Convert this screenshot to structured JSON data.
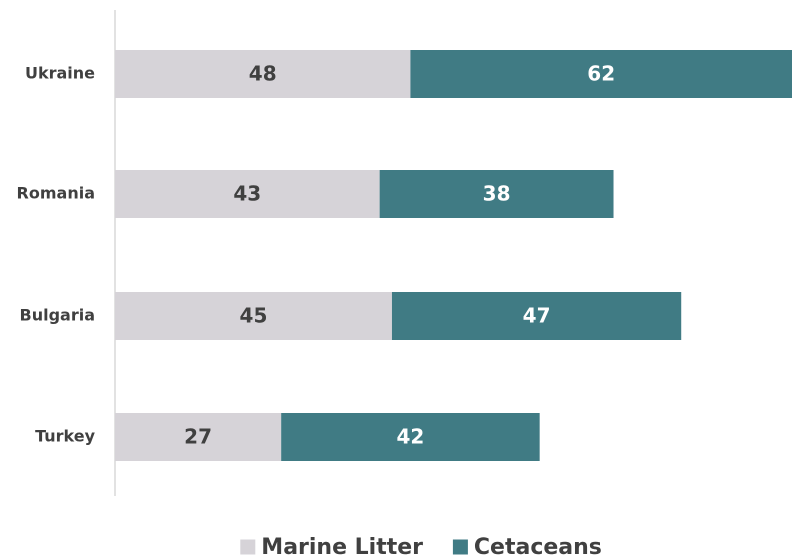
{
  "chart_data": {
    "type": "bar",
    "orientation": "horizontal",
    "stacked": true,
    "categories": [
      "Ukraine",
      "Romania",
      "Bulgaria",
      "Turkey"
    ],
    "series": [
      {
        "name": "Marine Litter",
        "values": [
          48,
          43,
          45,
          27
        ],
        "color": "#d6d3d8",
        "label_color": "#404040"
      },
      {
        "name": "Cetaceans",
        "values": [
          62,
          38,
          47,
          42
        ],
        "color": "#407b84",
        "label_color": "#ffffff"
      }
    ],
    "title": "",
    "xlabel": "",
    "ylabel": "",
    "xlim": [
      0,
      110
    ],
    "grid": false,
    "data_labels": true,
    "legend_position": "bottom"
  }
}
